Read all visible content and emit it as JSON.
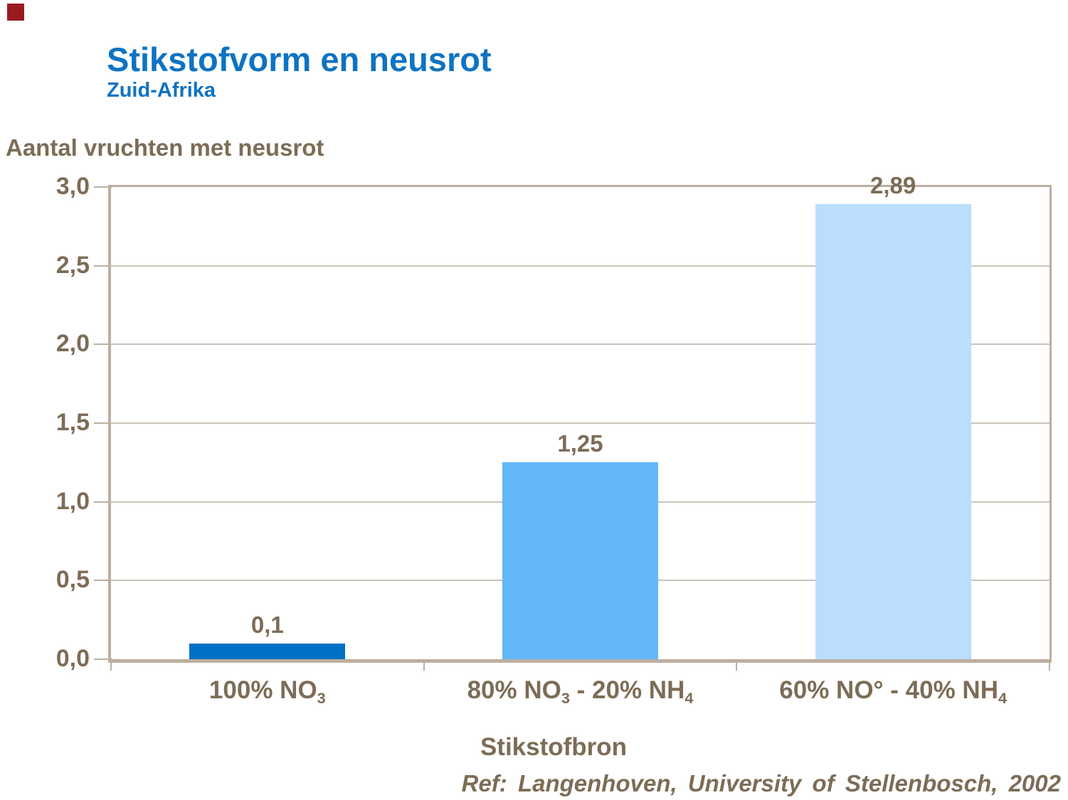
{
  "slide": {
    "title": "Stikstofvorm en neusrot",
    "subtitle": "Zuid-Afrika",
    "footer": "Ref: Langenhoven, University of Stellenbosch, 2002",
    "brand_square_color": "#9A1B1E"
  },
  "colors": {
    "title_blue": "#0E73C2",
    "text_brown": "#7D6C56",
    "frame_tan": "#BCAEA0",
    "gridline": "#CBC3BA"
  },
  "chart_data": {
    "type": "bar",
    "title": "Stikstofvorm en neusrot",
    "subtitle": "Zuid-Afrika",
    "ylabel": "Aantal vruchten met neusrot",
    "xlabel": "Stikstofbron",
    "ylim": [
      0,
      3
    ],
    "grid": true,
    "legend_position": "none",
    "yticks": [
      0,
      0.5,
      1,
      1.5,
      2,
      2.5,
      3
    ],
    "ytick_labels": [
      "0,0",
      "0,5",
      "1,0",
      "1,5",
      "2,0",
      "2,5",
      "3,0"
    ],
    "categories": [
      "100% NO₃",
      "80% NO₃ - 20% NH₄",
      "60% NO° - 40% NH₄"
    ],
    "categories_rich": [
      [
        {
          "t": "100% NO"
        },
        {
          "t": "3",
          "sub": true
        }
      ],
      [
        {
          "t": "80% NO"
        },
        {
          "t": "3",
          "sub": true
        },
        {
          "t": " - 20% NH"
        },
        {
          "t": "4",
          "sub": true
        }
      ],
      [
        {
          "t": "60% NO° - 40% NH"
        },
        {
          "t": "4",
          "sub": true
        }
      ]
    ],
    "values": [
      0.1,
      1.25,
      2.89
    ],
    "value_labels": [
      "0,1",
      "1,25",
      "2,89"
    ],
    "bar_colors": [
      "#0070C4",
      "#63B7F9",
      "#BBDEFC"
    ]
  }
}
